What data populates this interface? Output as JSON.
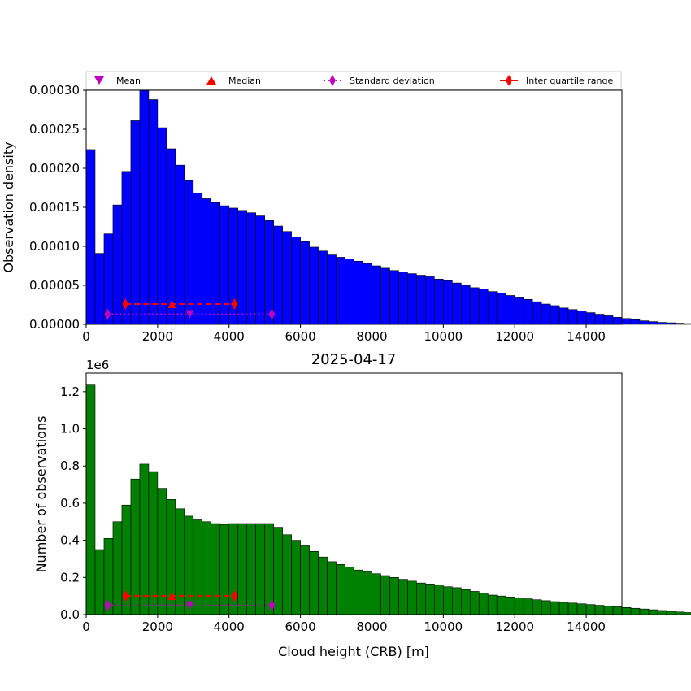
{
  "legend": [
    {
      "label": "Mean",
      "marker": "triangle-down",
      "color": "#bf00bf"
    },
    {
      "label": "Median",
      "marker": "triangle-up",
      "color": "#ff0000"
    },
    {
      "label": "Standard deviation",
      "marker": "thin-diamond",
      "color": "#bf00bf",
      "line": "dotted"
    },
    {
      "label": "Inter quartile range",
      "marker": "thin-diamond",
      "color": "#ff0000",
      "line": "solid"
    }
  ],
  "chart_data": [
    {
      "type": "histogram",
      "ylabel": "Observation density",
      "xlim": [
        0,
        15000
      ],
      "ylim": [
        0,
        0.0003
      ],
      "bar_color": "#0000ff",
      "bin_width": 250,
      "xticks": [
        "0",
        "2000",
        "4000",
        "6000",
        "8000",
        "10000",
        "12000",
        "14000"
      ],
      "yticks": [
        "0.00000",
        "0.00005",
        "0.00010",
        "0.00015",
        "0.00020",
        "0.00025",
        "0.00030"
      ],
      "values": [
        0.000224,
        9.1e-05,
        0.000116,
        0.000153,
        0.000196,
        0.000261,
        0.0003,
        0.000288,
        0.000252,
        0.000225,
        0.000204,
        0.000184,
        0.000168,
        0.000161,
        0.000156,
        0.000152,
        0.000149,
        0.000146,
        0.000143,
        0.000139,
        0.000133,
        0.000126,
        0.000119,
        0.000112,
        0.000106,
        9.9e-05,
        9.4e-05,
        8.9e-05,
        8.6e-05,
        8.4e-05,
        8.1e-05,
        7.8e-05,
        7.5e-05,
        7.2e-05,
        6.9e-05,
        6.7e-05,
        6.5e-05,
        6.3e-05,
        6.1e-05,
        5.8e-05,
        5.6e-05,
        5.3e-05,
        5e-05,
        4.7e-05,
        4.5e-05,
        4.2e-05,
        4e-05,
        3.7e-05,
        3.5e-05,
        3.2e-05,
        2.9e-05,
        2.6e-05,
        2.4e-05,
        2.1e-05,
        1.9e-05,
        1.7e-05,
        1.5e-05,
        1.3e-05,
        1.1e-05,
        9e-06,
        7.5e-06,
        6e-06,
        4.5e-06,
        3.5e-06,
        2.5e-06,
        2e-06,
        1.5e-06,
        1e-06,
        8e-07,
        5e-07,
        3e-07,
        2e-07,
        1e-07
      ],
      "stats": {
        "mean": 2900,
        "median": 2400,
        "std_range": [
          600,
          5200
        ],
        "iqr_range": [
          1100,
          4150
        ],
        "std_y": 1.3e-05,
        "iqr_y": 2.6e-05
      }
    },
    {
      "type": "histogram",
      "title": "2025-04-17",
      "xlabel": "Cloud height (CRB) [m]",
      "ylabel": "Number of observations",
      "y_scale_label": "1e6",
      "xlim": [
        0,
        15000
      ],
      "ylim": [
        0,
        1300000
      ],
      "bar_color": "#008000",
      "bin_width": 250,
      "xticks": [
        "0",
        "2000",
        "4000",
        "6000",
        "8000",
        "10000",
        "12000",
        "14000"
      ],
      "yticks": [
        "0.0",
        "0.2",
        "0.4",
        "0.6",
        "0.8",
        "1.0",
        "1.2"
      ],
      "values": [
        1240000,
        350000,
        410000,
        500000,
        590000,
        730000,
        810000,
        770000,
        680000,
        620000,
        570000,
        530000,
        510000,
        500000,
        490000,
        485000,
        490000,
        490000,
        490000,
        490000,
        490000,
        470000,
        430000,
        400000,
        370000,
        340000,
        310000,
        285000,
        270000,
        255000,
        240000,
        230000,
        220000,
        210000,
        200000,
        190000,
        180000,
        170000,
        165000,
        160000,
        150000,
        145000,
        135000,
        125000,
        115000,
        105000,
        100000,
        95000,
        90000,
        85000,
        80000,
        75000,
        70000,
        66000,
        62000,
        58000,
        54000,
        50000,
        46000,
        42000,
        38000,
        34000,
        30000,
        26000,
        22000,
        18000,
        14000,
        11000,
        9000,
        7000,
        5000,
        3500,
        2500,
        1800,
        1200,
        800
      ],
      "stats": {
        "mean": 2900,
        "median": 2400,
        "std_range": [
          600,
          5200
        ],
        "iqr_range": [
          1100,
          4150
        ],
        "std_y": 50000,
        "iqr_y": 100000
      }
    }
  ]
}
